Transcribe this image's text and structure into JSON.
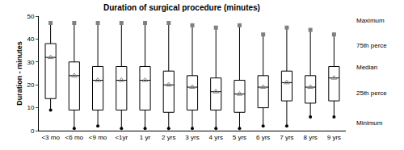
{
  "chart_data": {
    "type": "box",
    "title": "Duration of surgical procedure (minutes)",
    "y_label": "Duration - minutes",
    "categories": [
      "<3 mo",
      "<6 mo",
      "<9 mo",
      "<1yr",
      "1 yr",
      "2 yrs",
      "3 yrs",
      "4 yrs",
      "5 yrs",
      "6 yrs",
      "7 yrs",
      "8 yrs",
      "9 yrs"
    ],
    "max": [
      47,
      47,
      47,
      47,
      47,
      47,
      46,
      45,
      46,
      42,
      45,
      44,
      42
    ],
    "q3": [
      38,
      30,
      28,
      28,
      28,
      26,
      24,
      23,
      22,
      24,
      26,
      24,
      28
    ],
    "median": [
      32,
      24,
      22,
      22,
      22,
      20,
      19,
      17,
      16,
      19,
      21,
      19,
      23
    ],
    "q1": [
      14,
      9,
      9,
      9,
      9,
      8,
      9,
      9,
      8,
      10,
      13,
      12,
      13
    ],
    "min": [
      9,
      1,
      2,
      1,
      1,
      1,
      1,
      1,
      1,
      2,
      2,
      6,
      6
    ],
    "ylim": [
      0,
      50
    ],
    "yticks": [
      0,
      10,
      20,
      30,
      40,
      50
    ],
    "grid": false,
    "annotations": [
      "Maximum",
      "75th perce",
      "Median",
      "25th perce",
      "Minimum"
    ]
  }
}
